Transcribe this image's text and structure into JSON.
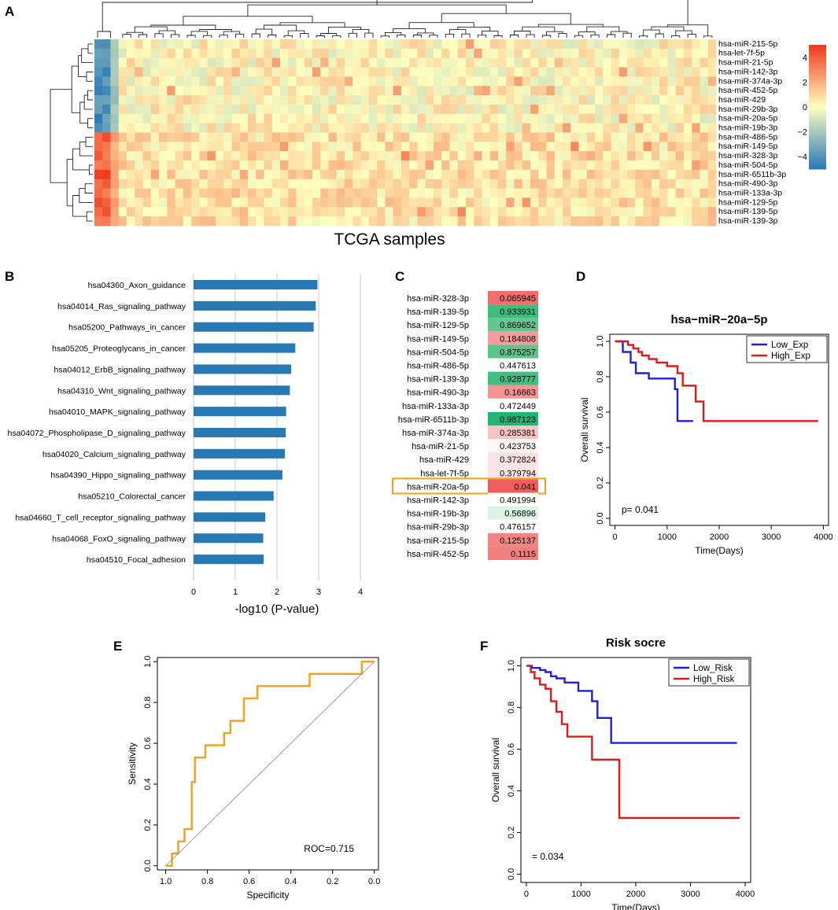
{
  "chart_data": [
    {
      "panel": "A",
      "type": "heatmap",
      "xlabel": "TCGA samples",
      "rows": [
        "hsa-miR-215-5p",
        "hsa-let-7f-5p",
        "hsa-miR-21-5p",
        "hsa-miR-142-3p",
        "hsa-miR-374a-3p",
        "hsa-miR-452-5p",
        "hsa-miR-429",
        "hsa-miR-29b-3p",
        "hsa-miR-20a-5p",
        "hsa-miR-19b-3p",
        "hsa-miR-486-5p",
        "hsa-miR-149-5p",
        "hsa-miR-328-3p",
        "hsa-miR-504-5p",
        "hsa-miR-6511b-3p",
        "hsa-miR-490-3p",
        "hsa-miR-133a-3p",
        "hsa-miR-129-5p",
        "hsa-miR-139-5p",
        "hsa-miR-139-3p"
      ],
      "n_columns": 77,
      "colorbar_ticks": [
        "4",
        "2",
        "0",
        "-2",
        "-4"
      ],
      "colorbar_range": [
        -5,
        5
      ],
      "colors": {
        "low": "#2c7bb6",
        "mid": "#ffffbf",
        "high": "#f03b20"
      }
    },
    {
      "panel": "B",
      "type": "bar",
      "orientation": "horizontal",
      "categories": [
        "hsa04360_Axon_guidance",
        "hsa04014_Ras_signaling_pathway",
        "hsa05200_Pathways_in_cancer",
        "hsa05205_Proteoglycans_in_cancer",
        "hsa04012_ErbB_signaling_pathway",
        "hsa04310_Wnt_signaling_pathway",
        "hsa04010_MAPK_signaling_pathway",
        "hsa04072_Phospholipase_D_signaling_pathway",
        "hsa04020_Calcium_signaling_pathway",
        "hsa04390_Hippo_signaling_pathway",
        "hsa05210_Colorectal_cancer",
        "hsa04660_T_cell_receptor_signaling_pathway",
        "hsa04068_FoxO_signaling_pathway",
        "hsa04510_Focal_adhesion"
      ],
      "values": [
        2.97,
        2.93,
        2.88,
        2.44,
        2.34,
        2.31,
        2.22,
        2.21,
        2.19,
        2.13,
        1.92,
        1.72,
        1.67,
        1.68
      ],
      "xlabel": "-log10 (P-value)",
      "xlim": [
        0,
        4
      ],
      "xticks": [
        "0",
        "1",
        "2",
        "3",
        "4"
      ],
      "bar_color": "#2878b4"
    },
    {
      "panel": "C",
      "type": "table",
      "rows": [
        {
          "name": "hsa-miR-328-3p",
          "value": "0.065945",
          "color": "#f06e6c"
        },
        {
          "name": "hsa-miR-139-5p",
          "value": "0.933931",
          "color": "#3cbf7e"
        },
        {
          "name": "hsa-miR-129-5p",
          "value": "0.869652",
          "color": "#62c690"
        },
        {
          "name": "hsa-miR-149-5p",
          "value": "0.184808",
          "color": "#f59c9c"
        },
        {
          "name": "hsa-miR-504-5p",
          "value": "0.875257",
          "color": "#5cc58c"
        },
        {
          "name": "hsa-miR-486-5p",
          "value": "0.447613",
          "color": "#ffffff"
        },
        {
          "name": "hsa-miR-139-3p",
          "value": "0.928777",
          "color": "#3fbf80"
        },
        {
          "name": "hsa-miR-490-3p",
          "value": "0.16663",
          "color": "#f59494"
        },
        {
          "name": "hsa-miR-133a-3p",
          "value": "0.472449",
          "color": "#ffffff"
        },
        {
          "name": "hsa-miR-6511b-3p",
          "value": "0.987123",
          "color": "#22b472"
        },
        {
          "name": "hsa-miR-374a-3p",
          "value": "0.285381",
          "color": "#f9c4c4"
        },
        {
          "name": "hsa-miR-21-5p",
          "value": "0.423753",
          "color": "#fef6f6"
        },
        {
          "name": "hsa-miR-429",
          "value": "0.372824",
          "color": "#fbe2e2"
        },
        {
          "name": "hsa-let-7f-5p",
          "value": "0.379794",
          "color": "#fbe4e4"
        },
        {
          "name": "hsa-miR-20a-5p",
          "value": "0.041",
          "color": "#ef5e5c"
        },
        {
          "name": "hsa-miR-142-3p",
          "value": "0.491994",
          "color": "#ffffff"
        },
        {
          "name": "hsa-miR-19b-3p",
          "value": "0.56896",
          "color": "#dcf2e4"
        },
        {
          "name": "hsa-miR-29b-3p",
          "value": "0.476157",
          "color": "#ffffff"
        },
        {
          "name": "hsa-miR-215-5p",
          "value": "0.125137",
          "color": "#f48484"
        },
        {
          "name": "hsa-miR-452-5p",
          "value": "0.1115",
          "color": "#f37e7e"
        }
      ],
      "highlight": "hsa-miR-20a-5p",
      "highlight_color": "#f0a020"
    },
    {
      "panel": "D",
      "type": "line",
      "title": "hsa−miR−20a−5p",
      "xlabel": "Time(Days)",
      "ylabel": "Overall survival",
      "xlim": [
        -100,
        4100
      ],
      "ylim": [
        -0.04,
        1.04
      ],
      "xticks": [
        "0",
        "1000",
        "2000",
        "3000",
        "4000"
      ],
      "yticks": [
        "0.0",
        "0.2",
        "0.4",
        "0.6",
        "0.8",
        "1.0"
      ],
      "annotation": "p= 0.041",
      "series": [
        {
          "name": "Low_Exp",
          "color": "#1f1fdc",
          "x": [
            0,
            150,
            300,
            400,
            650,
            700,
            1150,
            1200,
            1500
          ],
          "y": [
            1.0,
            0.94,
            0.88,
            0.82,
            0.79,
            0.79,
            0.73,
            0.55,
            0.55
          ]
        },
        {
          "name": "High_Exp",
          "color": "#e01818",
          "x": [
            0,
            250,
            350,
            450,
            520,
            650,
            800,
            1000,
            1200,
            1300,
            1550,
            1700,
            3900
          ],
          "y": [
            1.0,
            0.98,
            0.96,
            0.94,
            0.92,
            0.9,
            0.88,
            0.86,
            0.82,
            0.75,
            0.66,
            0.55,
            0.55
          ]
        }
      ]
    },
    {
      "panel": "E",
      "type": "line",
      "xlabel": "Specificity",
      "ylabel": "Sensitivity",
      "xlim": [
        1.04,
        -0.02
      ],
      "ylim": [
        -0.02,
        1.02
      ],
      "xticks": [
        "1.0",
        "0.8",
        "0.6",
        "0.4",
        "0.2",
        "0.0"
      ],
      "yticks": [
        "0.0",
        "0.2",
        "0.4",
        "0.6",
        "0.8",
        "1.0"
      ],
      "annotation": "ROC=0.715",
      "series": [
        {
          "name": "ROC",
          "color": "#f0a020",
          "x": [
            1.0,
            0.97,
            0.97,
            0.94,
            0.94,
            0.91,
            0.91,
            0.875,
            0.875,
            0.86,
            0.86,
            0.81,
            0.81,
            0.72,
            0.72,
            0.69,
            0.69,
            0.625,
            0.625,
            0.56,
            0.56,
            0.45,
            0.45,
            0.31,
            0.31,
            0.06,
            0.06,
            0.0
          ],
          "y": [
            0.0,
            0.0,
            0.06,
            0.06,
            0.12,
            0.12,
            0.18,
            0.18,
            0.41,
            0.41,
            0.53,
            0.53,
            0.59,
            0.59,
            0.65,
            0.65,
            0.71,
            0.71,
            0.82,
            0.82,
            0.88,
            0.88,
            0.88,
            0.88,
            0.94,
            0.94,
            1.0,
            1.0
          ]
        },
        {
          "name": "Reference",
          "color": "#999999",
          "x": [
            1.0,
            0.0
          ],
          "y": [
            0.0,
            1.0
          ]
        }
      ]
    },
    {
      "panel": "F",
      "type": "line",
      "title": "Risk socre",
      "xlabel": "Time(Days)",
      "ylabel": "Overall survival",
      "xlim": [
        -100,
        4100
      ],
      "ylim": [
        -0.04,
        1.04
      ],
      "xticks": [
        "0",
        "1000",
        "2000",
        "3000",
        "4000"
      ],
      "yticks": [
        "0.0",
        "0.2",
        "0.4",
        "0.6",
        "0.8",
        "1.0"
      ],
      "annotation": "= 0.034",
      "series": [
        {
          "name": "Low_Risk",
          "color": "#1f1fdc",
          "x": [
            0,
            100,
            250,
            350,
            450,
            550,
            700,
            950,
            1200,
            1300,
            1350,
            1550,
            3850
          ],
          "y": [
            1.0,
            0.99,
            0.98,
            0.97,
            0.95,
            0.94,
            0.92,
            0.88,
            0.83,
            0.75,
            0.75,
            0.63,
            0.63
          ]
        },
        {
          "name": "High_Risk",
          "color": "#e01818",
          "x": [
            0,
            80,
            150,
            250,
            350,
            450,
            550,
            650,
            750,
            900,
            1200,
            1700,
            3900
          ],
          "y": [
            1.0,
            0.97,
            0.94,
            0.91,
            0.89,
            0.83,
            0.78,
            0.72,
            0.66,
            0.66,
            0.55,
            0.27,
            0.27
          ]
        }
      ]
    }
  ]
}
